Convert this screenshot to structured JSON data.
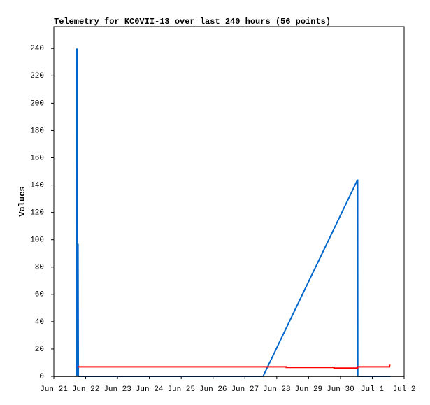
{
  "chart_data": {
    "type": "line",
    "title": "Telemetry for KC0VII-13 over last 240 hours (56 points)",
    "y_label": "Values",
    "xlim": [
      21,
      32
    ],
    "xticks": [
      {
        "value": 21,
        "label": "Jun 21"
      },
      {
        "value": 22,
        "label": "Jun 22"
      },
      {
        "value": 23,
        "label": "Jun 23"
      },
      {
        "value": 24,
        "label": "Jun 24"
      },
      {
        "value": 25,
        "label": "Jun 25"
      },
      {
        "value": 26,
        "label": "Jun 26"
      },
      {
        "value": 27,
        "label": "Jun 27"
      },
      {
        "value": 28,
        "label": "Jun 28"
      },
      {
        "value": 29,
        "label": "Jun 29"
      },
      {
        "value": 30,
        "label": "Jun 30"
      },
      {
        "value": 31,
        "label": "Jul 1"
      },
      {
        "value": 32,
        "label": "Jul 2"
      }
    ],
    "ylim": [
      0,
      256
    ],
    "yticks": [
      0,
      20,
      40,
      60,
      80,
      100,
      120,
      140,
      160,
      180,
      200,
      220,
      240
    ],
    "series": [
      {
        "color": "#0066cc",
        "x": [
          21.72,
          21.725,
          21.73,
          21.76,
          21.77,
          27.57,
          30.54,
          30.545,
          31.57
        ],
        "values": [
          0,
          240,
          0,
          97,
          0,
          0,
          144,
          0,
          0
        ]
      },
      {
        "color": "#ff0000",
        "x": [
          21.75,
          28.3,
          28.3,
          29.8,
          29.8,
          30.54,
          30.54,
          31.54,
          31.54,
          31.57
        ],
        "values": [
          7,
          7,
          6.5,
          6.5,
          6,
          6,
          7,
          7,
          8,
          8
        ]
      }
    ]
  }
}
